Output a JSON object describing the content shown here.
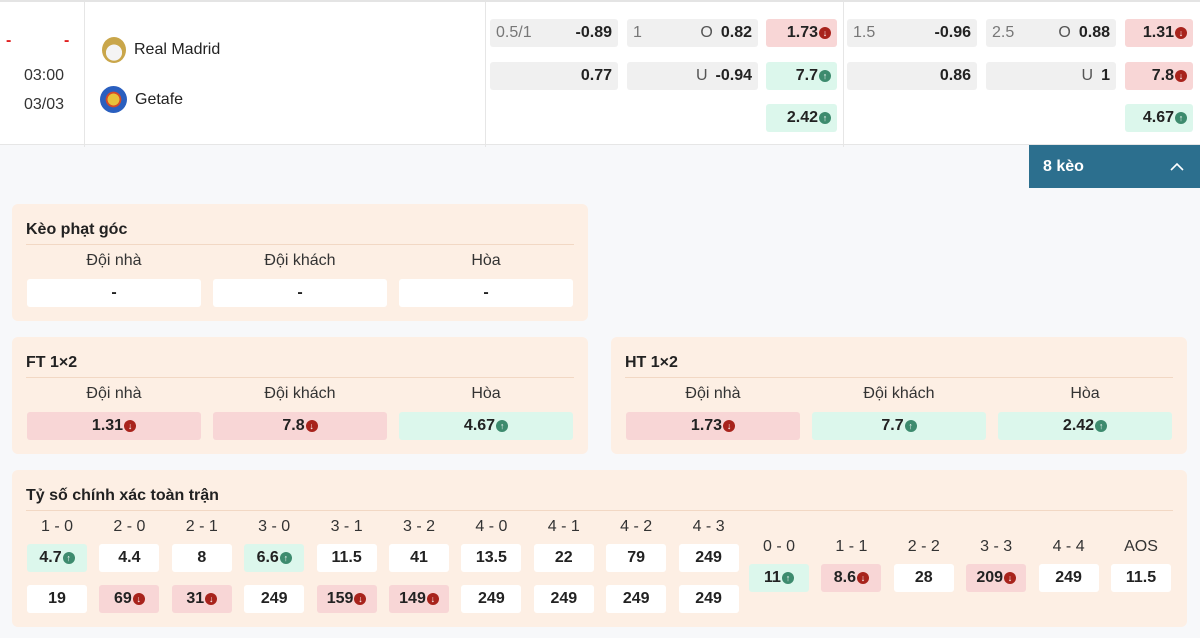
{
  "match": {
    "home_score": "-",
    "away_score": "-",
    "time": "03:00",
    "date": "03/03",
    "home": "Real Madrid",
    "away": "Getafe"
  },
  "colors": {
    "accent": "#2c6f8e",
    "down": "#a8231c",
    "up": "#3d8b6e",
    "down_bg": "#f8d6d6",
    "up_bg": "#dcf7ec"
  },
  "odds": [
    {
      "label": "0.5/1",
      "value": "-0.89"
    },
    {
      "label": "1",
      "mid": "O",
      "value": "0.82"
    },
    {
      "value": "1.73",
      "trend": "down"
    },
    {
      "label": "1.5",
      "value": "-0.96"
    },
    {
      "label": "2.5",
      "mid": "O",
      "value": "0.88"
    },
    {
      "value": "1.31",
      "trend": "down"
    },
    {
      "value": "0.77"
    },
    {
      "mid": "U",
      "value": "-0.94"
    },
    {
      "value": "7.7",
      "trend": "up"
    },
    {
      "value": "0.86"
    },
    {
      "mid": "U",
      "value": "1"
    },
    {
      "value": "7.8",
      "trend": "down"
    },
    {
      "value": "2.42",
      "trend": "up"
    },
    {
      "value": "4.67",
      "trend": "up"
    }
  ],
  "more_button": {
    "label": "8 kèo",
    "icon": "chevron-up-icon"
  },
  "corner": {
    "title": "Kèo phạt góc",
    "headers": [
      "Đội nhà",
      "Đội khách",
      "Hòa"
    ],
    "values": [
      {
        "value": "-"
      },
      {
        "value": "-"
      },
      {
        "value": "-"
      }
    ]
  },
  "ft": {
    "title": "FT 1×2",
    "headers": [
      "Đội nhà",
      "Đội khách",
      "Hòa"
    ],
    "values": [
      {
        "value": "1.31",
        "trend": "down"
      },
      {
        "value": "7.8",
        "trend": "down"
      },
      {
        "value": "4.67",
        "trend": "up"
      }
    ]
  },
  "ht": {
    "title": "HT 1×2",
    "headers": [
      "Đội nhà",
      "Đội khách",
      "Hòa"
    ],
    "values": [
      {
        "value": "1.73",
        "trend": "down"
      },
      {
        "value": "7.7",
        "trend": "up"
      },
      {
        "value": "2.42",
        "trend": "up"
      }
    ]
  },
  "correct_score": {
    "title": "Tỷ số chính xác toàn trận",
    "home_wins": [
      {
        "score": "1 - 0",
        "home": {
          "value": "4.7",
          "trend": "up"
        },
        "away": {
          "value": "19"
        }
      },
      {
        "score": "2 - 0",
        "home": {
          "value": "4.4"
        },
        "away": {
          "value": "69",
          "trend": "down"
        }
      },
      {
        "score": "2 - 1",
        "home": {
          "value": "8"
        },
        "away": {
          "value": "31",
          "trend": "down"
        }
      },
      {
        "score": "3 - 0",
        "home": {
          "value": "6.6",
          "trend": "up"
        },
        "away": {
          "value": "249"
        }
      },
      {
        "score": "3 - 1",
        "home": {
          "value": "11.5"
        },
        "away": {
          "value": "159",
          "trend": "down"
        }
      },
      {
        "score": "3 - 2",
        "home": {
          "value": "41"
        },
        "away": {
          "value": "149",
          "trend": "down"
        }
      },
      {
        "score": "4 - 0",
        "home": {
          "value": "13.5"
        },
        "away": {
          "value": "249"
        }
      },
      {
        "score": "4 - 1",
        "home": {
          "value": "22"
        },
        "away": {
          "value": "249"
        }
      },
      {
        "score": "4 - 2",
        "home": {
          "value": "79"
        },
        "away": {
          "value": "249"
        }
      },
      {
        "score": "4 - 3",
        "home": {
          "value": "249"
        },
        "away": {
          "value": "249"
        }
      }
    ],
    "draws": [
      {
        "score": "0 - 0",
        "value": "11",
        "trend": "up"
      },
      {
        "score": "1 - 1",
        "value": "8.6",
        "trend": "down"
      },
      {
        "score": "2 - 2",
        "value": "28"
      },
      {
        "score": "3 - 3",
        "value": "209",
        "trend": "down"
      },
      {
        "score": "4 - 4",
        "value": "249"
      },
      {
        "score": "AOS",
        "value": "11.5"
      }
    ]
  }
}
